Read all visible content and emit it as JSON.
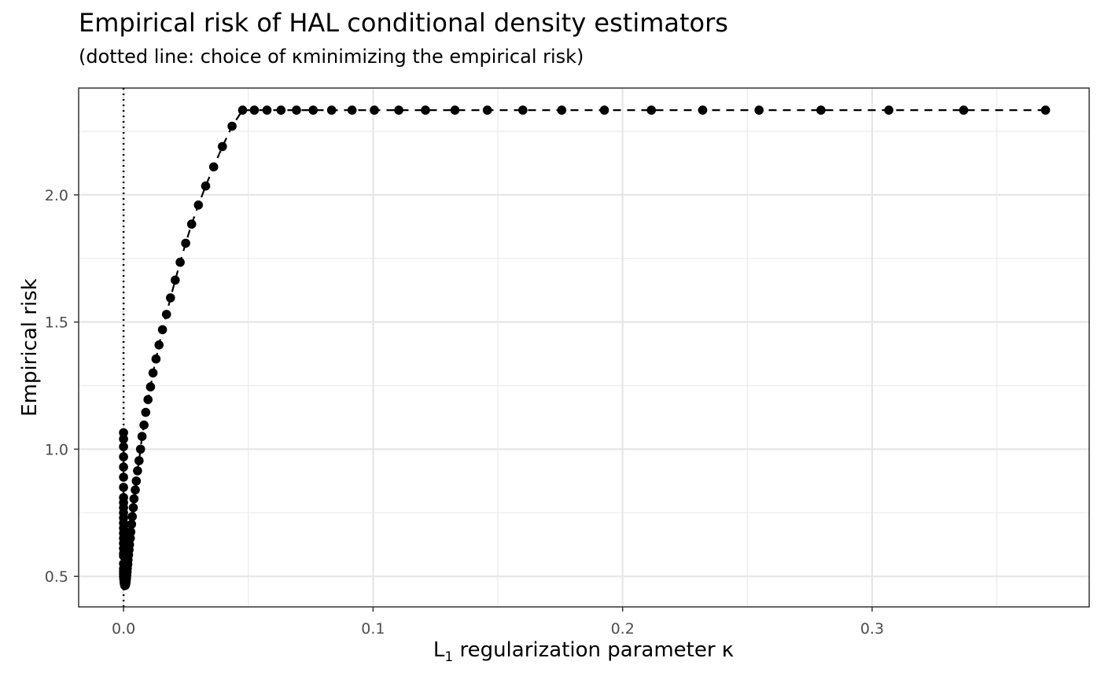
{
  "chart_data": {
    "type": "line",
    "title": "Empirical risk of HAL conditional density estimators",
    "subtitle": "(dotted line: choice of κminimizing the empirical risk)",
    "xlabel_main": "L",
    "xlabel_sub": "1",
    "xlabel_rest": " regularization parameter κ",
    "ylabel": "Empirical risk",
    "xlim": [
      -0.018,
      0.387
    ],
    "ylim": [
      0.38,
      2.42
    ],
    "x_ticks": [
      0.0,
      0.1,
      0.2,
      0.3
    ],
    "x_tick_labels": [
      "0.0",
      "0.1",
      "0.2",
      "0.3"
    ],
    "y_ticks": [
      0.5,
      1.0,
      1.5,
      2.0
    ],
    "y_tick_labels": [
      "0.5",
      "1.0",
      "1.5",
      "2.0"
    ],
    "grid": true,
    "line_style": "dashed",
    "vline": {
      "x": 0.0,
      "style": "dotted"
    },
    "x": [
      0.3695,
      0.3367,
      0.3067,
      0.2795,
      0.2547,
      0.2321,
      0.2115,
      0.1927,
      0.1756,
      0.16,
      0.1458,
      0.1328,
      0.121,
      0.1103,
      0.1005,
      0.0916,
      0.0834,
      0.076,
      0.0693,
      0.0631,
      0.0575,
      0.0524,
      0.0477,
      0.0435,
      0.0396,
      0.0361,
      0.0329,
      0.03,
      0.0273,
      0.0249,
      0.0227,
      0.0207,
      0.0188,
      0.0172,
      0.0156,
      0.0142,
      0.013,
      0.0118,
      0.0108,
      0.0098,
      0.0089,
      0.0082,
      0.0074,
      0.0068,
      0.0062,
      0.0056,
      0.0051,
      0.0047,
      0.0042,
      0.0039,
      0.0035,
      0.0032,
      0.0029,
      0.0027,
      0.0024,
      0.0022,
      0.002,
      0.0018,
      0.0017,
      0.0015,
      0.0014,
      0.0013,
      0.0012,
      0.0011,
      0.001,
      0.0009,
      0.0008,
      0.0007,
      0.0006,
      0.0005,
      0.0004,
      0.0003,
      0.0002,
      0.0001,
      0.0,
      0.0,
      0.0,
      0.0,
      0.0,
      0.0,
      0.0,
      0.0,
      0.0,
      0.0,
      0.0,
      0.0,
      0.0,
      0.0,
      0.0,
      0.0,
      0.0,
      0.0,
      0.0,
      0.0,
      0.0,
      0.0,
      0.0,
      0.0,
      0.0
    ],
    "y": [
      2.333,
      2.333,
      2.333,
      2.333,
      2.333,
      2.333,
      2.333,
      2.333,
      2.333,
      2.333,
      2.333,
      2.333,
      2.333,
      2.333,
      2.333,
      2.333,
      2.333,
      2.333,
      2.333,
      2.333,
      2.333,
      2.333,
      2.333,
      2.27,
      2.19,
      2.11,
      2.035,
      1.96,
      1.885,
      1.81,
      1.735,
      1.665,
      1.595,
      1.53,
      1.47,
      1.41,
      1.355,
      1.3,
      1.245,
      1.195,
      1.145,
      1.095,
      1.05,
      1.0,
      0.955,
      0.915,
      0.875,
      0.84,
      0.805,
      0.77,
      0.735,
      0.705,
      0.675,
      0.65,
      0.625,
      0.605,
      0.585,
      0.565,
      0.548,
      0.532,
      0.518,
      0.505,
      0.495,
      0.486,
      0.478,
      0.472,
      0.468,
      0.465,
      0.464,
      0.464,
      0.467,
      0.472,
      0.48,
      0.49,
      0.5,
      0.51,
      0.52,
      0.53,
      0.55,
      0.58,
      0.61,
      0.65,
      0.69,
      0.73,
      0.77,
      0.81,
      0.85,
      0.89,
      0.93,
      0.97,
      1.01,
      1.04,
      1.065,
      0.59,
      0.63,
      0.67,
      0.71,
      0.75,
      0.79
    ]
  }
}
